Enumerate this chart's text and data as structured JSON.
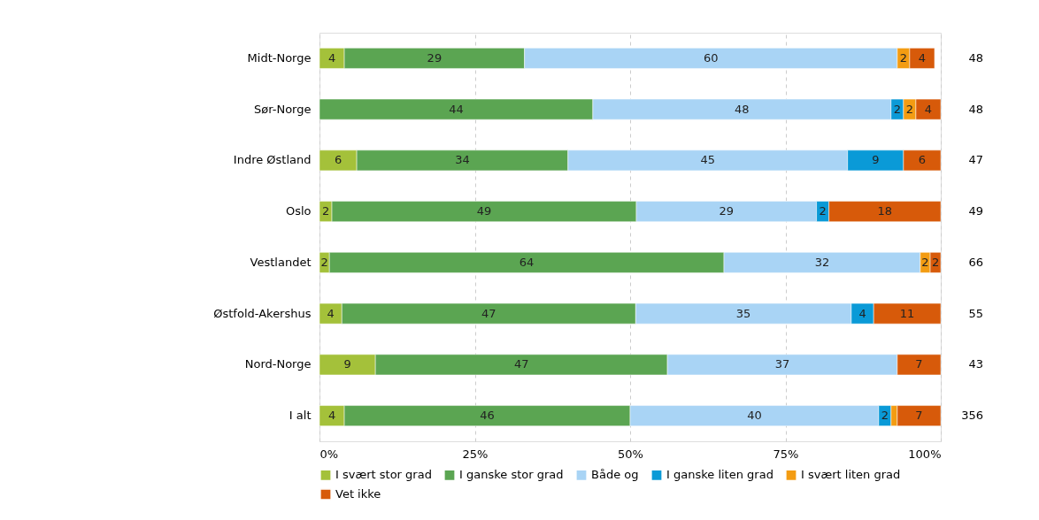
{
  "chart_data": {
    "type": "bar",
    "orientation": "horizontal",
    "stacked": true,
    "categories": [
      "Midt-Norge",
      "Sør-Norge",
      "Indre Østland",
      "Oslo",
      "Vestlandet",
      "Østfold-Akershus",
      "Nord-Norge",
      "I alt"
    ],
    "series": [
      {
        "name": "I svært stor grad",
        "color": "#a4c13a",
        "values": [
          4,
          null,
          6,
          2,
          1.6,
          3.6,
          9,
          4
        ],
        "value_labels": [
          "4",
          null,
          "6",
          "2",
          "2",
          "4",
          "9",
          "4"
        ]
      },
      {
        "name": "I ganske stor grad",
        "color": "#5ba552",
        "values": [
          29,
          44,
          34,
          49,
          63.5,
          47.3,
          47,
          46
        ],
        "value_labels": [
          "29",
          "44",
          "34",
          "49",
          "64",
          "47",
          "47",
          "46"
        ]
      },
      {
        "name": "Både og",
        "color": "#a9d4f5",
        "values": [
          60,
          48,
          45,
          29,
          31.6,
          34.7,
          37,
          40
        ],
        "value_labels": [
          "60",
          "48",
          "45",
          "29",
          "32",
          "35",
          "37",
          "40"
        ]
      },
      {
        "name": "I ganske liten grad",
        "color": "#0a9ad7",
        "values": [
          null,
          2,
          9,
          2,
          null,
          3.6,
          null,
          2
        ],
        "value_labels": [
          null,
          "2",
          "9",
          "2",
          null,
          "4",
          null,
          "2"
        ]
      },
      {
        "name": "I svært liten grad",
        "color": "#f39c12",
        "values": [
          2,
          2,
          null,
          null,
          1.6,
          null,
          null,
          1
        ],
        "value_labels": [
          "2",
          "2",
          null,
          null,
          "2",
          null,
          null,
          null
        ]
      },
      {
        "name": "Vet ikke",
        "color": "#d75a0a",
        "values": [
          4,
          4,
          6,
          18,
          1.7,
          10.8,
          7,
          7
        ],
        "value_labels": [
          "4",
          "4",
          "6",
          "18",
          "2",
          "11",
          "7",
          "7"
        ]
      }
    ],
    "xlim": [
      0,
      100
    ],
    "xticks": [
      {
        "value": 0,
        "label": "0%"
      },
      {
        "value": 25,
        "label": "25%"
      },
      {
        "value": 50,
        "label": "50%"
      },
      {
        "value": 75,
        "label": "75%"
      },
      {
        "value": 100,
        "label": "100%"
      }
    ],
    "grid": "x",
    "legend": "bottom",
    "annotations": [
      "48",
      "48",
      "47",
      "49",
      "66",
      "55",
      "43",
      "356"
    ]
  }
}
